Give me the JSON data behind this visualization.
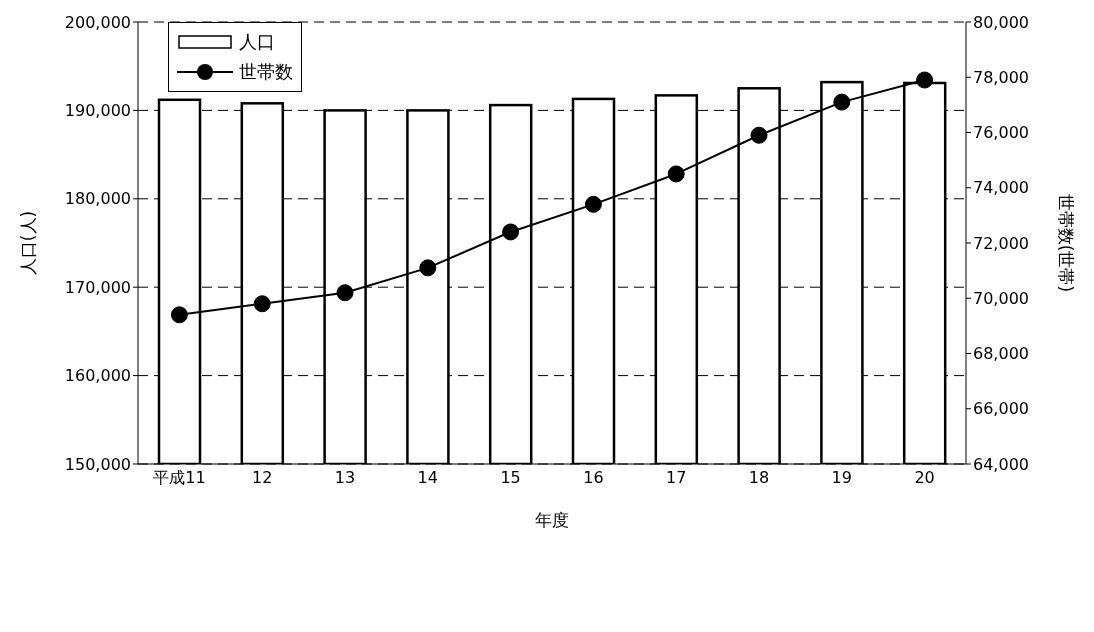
{
  "chart_data": {
    "type": "bar",
    "xlabel": "年度",
    "ylabel": "人口(人)",
    "y2label": "世帯数(世帯)",
    "categories": [
      "平成11",
      "12",
      "13",
      "14",
      "15",
      "16",
      "17",
      "18",
      "19",
      "20"
    ],
    "series": [
      {
        "name": "人口",
        "color": "#ffffff",
        "values": [
          191200,
          190800,
          190000,
          190000,
          190600,
          191300,
          191700,
          192500,
          193200,
          193100
        ]
      },
      {
        "name": "世帯数",
        "type": "line",
        "axis": "y2",
        "color": "#000000",
        "values": [
          69400,
          69800,
          70200,
          71100,
          72400,
          73400,
          74500,
          75900,
          77100,
          77900
        ]
      }
    ],
    "ylim": [
      150000,
      200000
    ],
    "yticks": [
      {
        "value": 150000,
        "label": "150,000"
      },
      {
        "value": 160000,
        "label": "160,000"
      },
      {
        "value": 170000,
        "label": "170,000"
      },
      {
        "value": 180000,
        "label": "180,000"
      },
      {
        "value": 190000,
        "label": "190,000"
      },
      {
        "value": 200000,
        "label": "200,000"
      }
    ],
    "y2lim": [
      64000,
      80000
    ],
    "y2ticks": [
      {
        "value": 64000,
        "label": "64,000"
      },
      {
        "value": 66000,
        "label": "66,000"
      },
      {
        "value": 68000,
        "label": "68,000"
      },
      {
        "value": 70000,
        "label": "70,000"
      },
      {
        "value": 72000,
        "label": "72,000"
      },
      {
        "value": 74000,
        "label": "74,000"
      },
      {
        "value": 76000,
        "label": "76,000"
      },
      {
        "value": 78000,
        "label": "78,000"
      },
      {
        "value": 80000,
        "label": "80,000"
      }
    ],
    "grid": "y",
    "legend": "top left",
    "marker": "circle",
    "line_style": "solid"
  }
}
